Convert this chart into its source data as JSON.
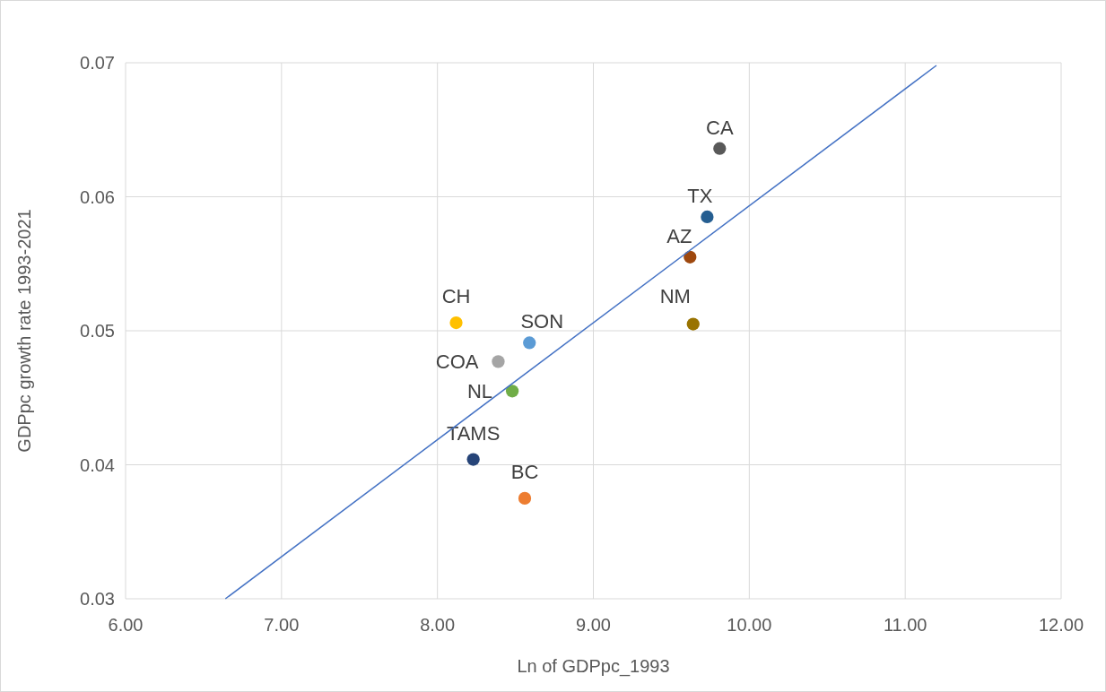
{
  "chart_data": {
    "type": "scatter",
    "xlabel": "Ln of GDPpc_1993",
    "ylabel": "GDPpc growth rate 1993-2021",
    "xlim": [
      6,
      12
    ],
    "xticks": [
      {
        "value": 6,
        "label": "6.00"
      },
      {
        "value": 7,
        "label": "7.00"
      },
      {
        "value": 8,
        "label": "8.00"
      },
      {
        "value": 9,
        "label": "9.00"
      },
      {
        "value": 10,
        "label": "10.00"
      },
      {
        "value": 11,
        "label": "11.00"
      },
      {
        "value": 12,
        "label": "12.00"
      }
    ],
    "ylim": [
      0.03,
      0.07
    ],
    "yticks": [
      0.03,
      0.04,
      0.05,
      0.06,
      0.07
    ],
    "grid": true,
    "series": [
      {
        "name": "CA",
        "color": "#595959",
        "marker": "circle",
        "x": [
          9.81
        ],
        "values": [
          0.0636
        ]
      },
      {
        "name": "TX",
        "color": "#255e91",
        "marker": "circle",
        "x": [
          9.73
        ],
        "values": [
          0.0585
        ]
      },
      {
        "name": "AZ",
        "color": "#9e480e",
        "marker": "circle",
        "x": [
          9.62
        ],
        "values": [
          0.0555
        ]
      },
      {
        "name": "NM",
        "color": "#997300",
        "marker": "circle",
        "x": [
          9.64
        ],
        "values": [
          0.0505
        ]
      },
      {
        "name": "CH",
        "color": "#ffc000",
        "marker": "circle",
        "x": [
          8.12
        ],
        "values": [
          0.0506
        ]
      },
      {
        "name": "SON",
        "color": "#5b9bd5",
        "marker": "circle",
        "x": [
          8.59
        ],
        "values": [
          0.0491
        ]
      },
      {
        "name": "COA",
        "color": "#a5a5a5",
        "marker": "circle",
        "x": [
          8.39
        ],
        "values": [
          0.0477
        ]
      },
      {
        "name": "NL",
        "color": "#70ad47",
        "marker": "circle",
        "x": [
          8.48
        ],
        "values": [
          0.0455
        ]
      },
      {
        "name": "TAMS",
        "color": "#264478",
        "marker": "circle",
        "x": [
          8.23
        ],
        "values": [
          0.0404
        ]
      },
      {
        "name": "BC",
        "color": "#ed7d31",
        "marker": "circle",
        "x": [
          8.56
        ],
        "values": [
          0.0375
        ]
      },
      {
        "type": "line",
        "color": "#4472c4",
        "x": [
          6.64,
          11.2
        ],
        "values": [
          0.03,
          0.0698
        ]
      }
    ]
  }
}
